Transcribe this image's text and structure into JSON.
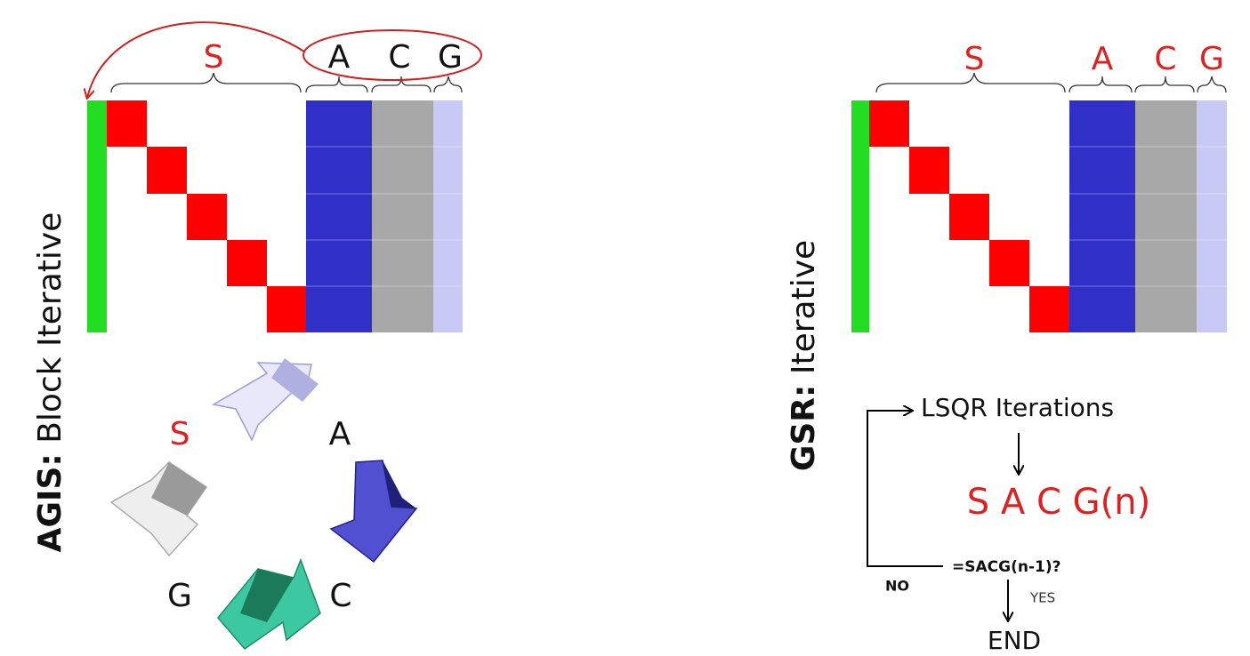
{
  "left": {
    "title_bold": "AGIS:",
    "title_rest": "Block Iterative",
    "blocks": [
      "S",
      "A",
      "C",
      "G"
    ],
    "cycle": [
      "S",
      "A",
      "C",
      "G"
    ]
  },
  "right": {
    "title_bold": "GSR:",
    "title_rest": "Iterative",
    "blocks": [
      "S",
      "A",
      "C",
      "G"
    ],
    "flow": {
      "start": "LSQR Iterations",
      "update": "S A C G(n)",
      "check": "=SACG(n-1)?",
      "no": "NO",
      "yes": "YES",
      "end": "END"
    }
  }
}
